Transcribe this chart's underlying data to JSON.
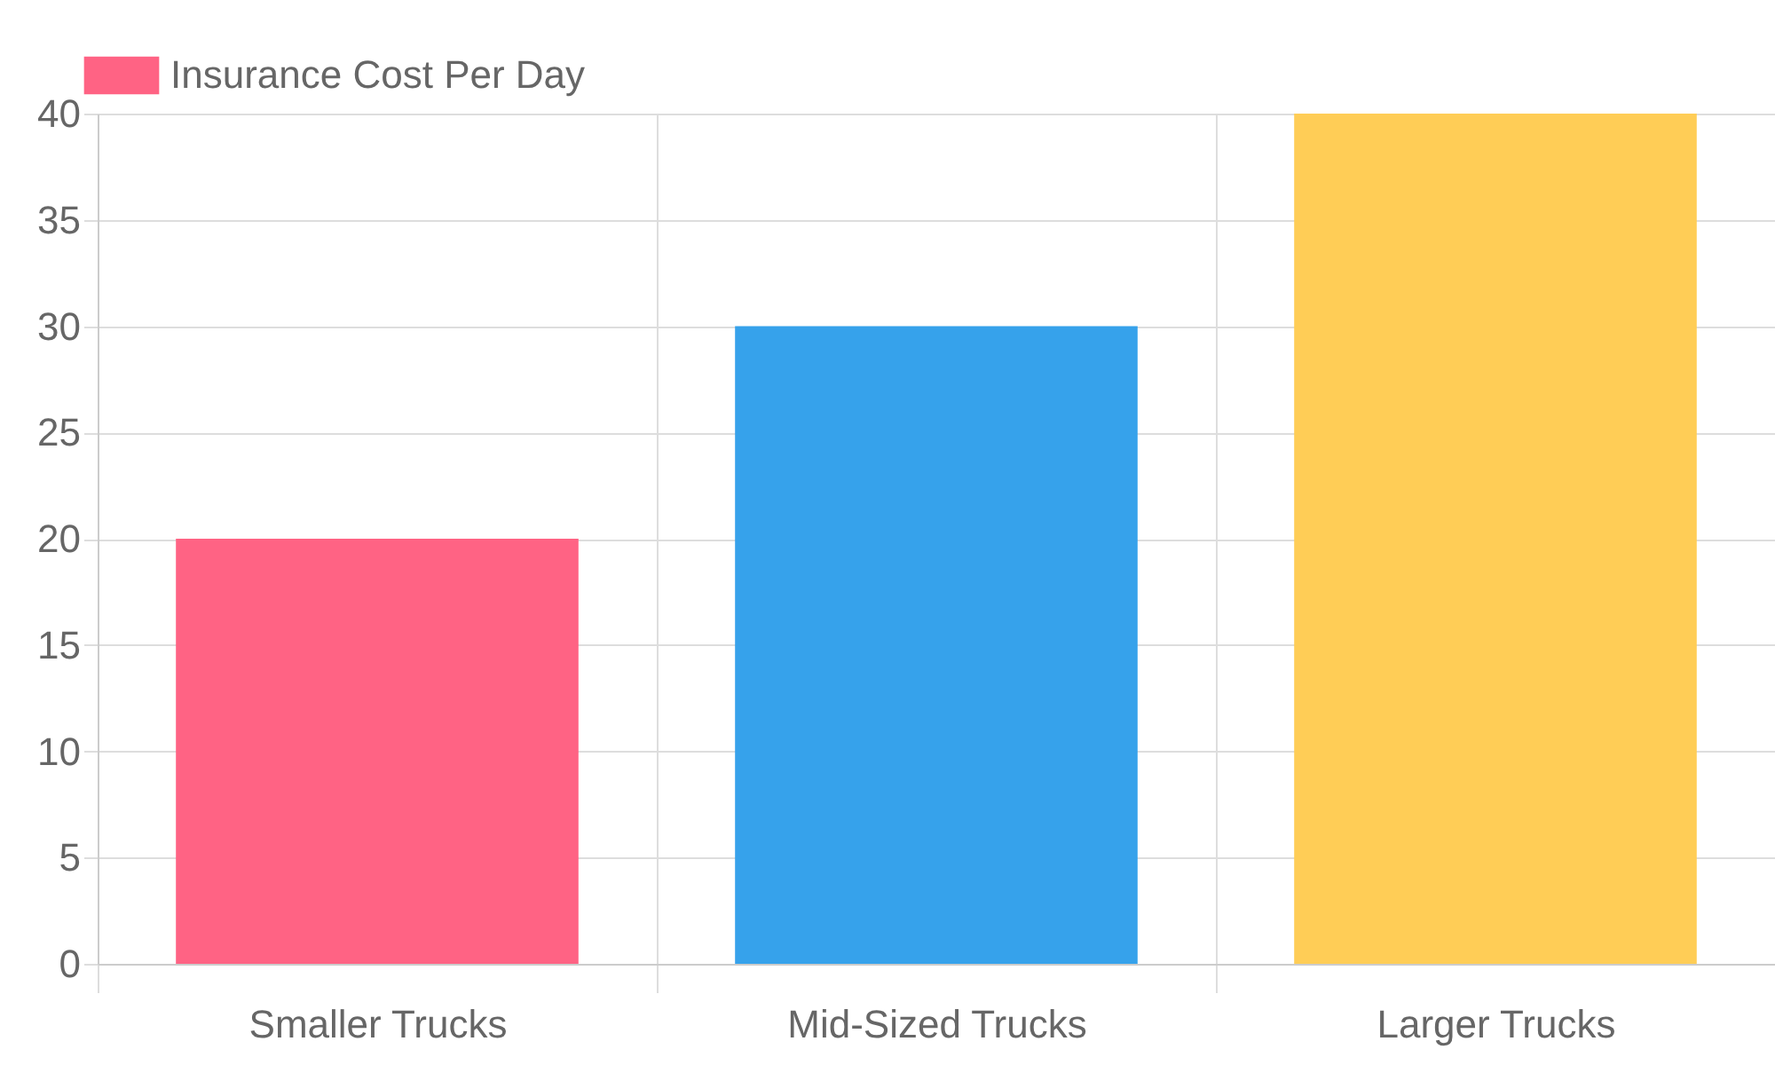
{
  "chart_data": {
    "type": "bar",
    "categories": [
      "Smaller Trucks",
      "Mid-Sized Trucks",
      "Larger Trucks"
    ],
    "series": [
      {
        "name": "Insurance Cost Per Day",
        "colors": [
          "#ff6384",
          "#36a2eb",
          "#ffcd56"
        ],
        "values": [
          20,
          30,
          40
        ]
      }
    ],
    "ylim": [
      0,
      40
    ],
    "yticks": [
      0,
      5,
      10,
      15,
      20,
      25,
      30,
      35,
      40
    ],
    "grid": true,
    "legend": "top"
  }
}
